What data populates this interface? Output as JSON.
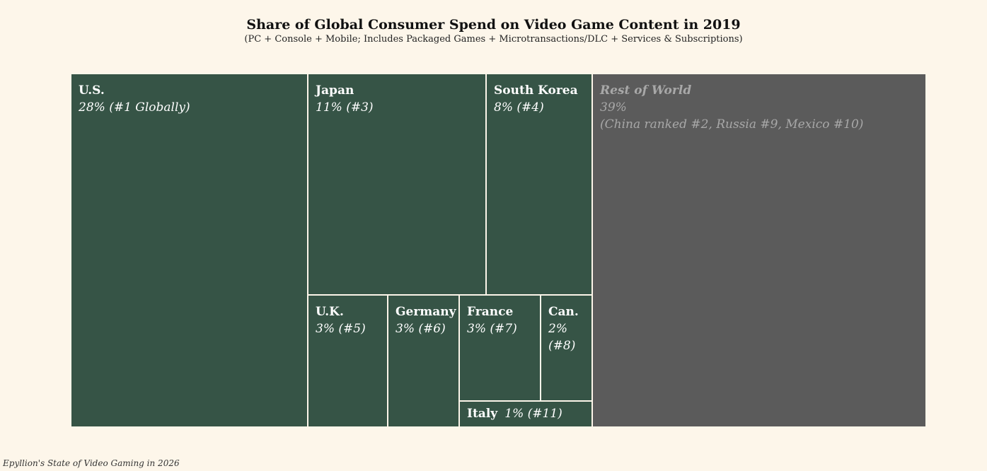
{
  "chart_data": {
    "type": "treemap",
    "title": "Share of Global Consumer Spend on Video Game Content in 2019",
    "subtitle": "(PC + Console + Mobile; Includes Packaged Games + Microtransactions/DLC + Services & Subscriptions)",
    "unit": "%",
    "colors": {
      "country": "#365446",
      "rest": "#5b5b5b",
      "border": "#fdf6ea",
      "background": "#fdf6ea"
    },
    "tiles": [
      {
        "name": "U.S.",
        "share": 28,
        "value_label": "28% (#1 Globally)",
        "rank": 1,
        "note": ""
      },
      {
        "name": "Japan",
        "share": 11,
        "value_label": "11% (#3)",
        "rank": 3,
        "note": ""
      },
      {
        "name": "South Korea",
        "share": 8,
        "value_label": "8% (#4)",
        "rank": 4,
        "note": ""
      },
      {
        "name": "U.K.",
        "share": 3,
        "value_label": "3% (#5)",
        "rank": 5,
        "note": ""
      },
      {
        "name": "Germany",
        "share": 3,
        "value_label": "3% (#6)",
        "rank": 6,
        "note": ""
      },
      {
        "name": "France",
        "share": 3,
        "value_label": "3% (#7)",
        "rank": 7,
        "note": ""
      },
      {
        "name": "Can.",
        "share": 2,
        "value_label": "2% (#8)",
        "rank": 8,
        "note": ""
      },
      {
        "name": "Italy",
        "share": 1,
        "value_label": "1% (#11)",
        "rank": 11,
        "note": ""
      },
      {
        "name": "Rest of World",
        "share": 39,
        "value_label": "39%",
        "rank": null,
        "note": "(China ranked #2, Russia #9, Mexico #10)"
      }
    ]
  },
  "footer": {
    "source": "Epyllion's State of Video Gaming in 2026"
  }
}
